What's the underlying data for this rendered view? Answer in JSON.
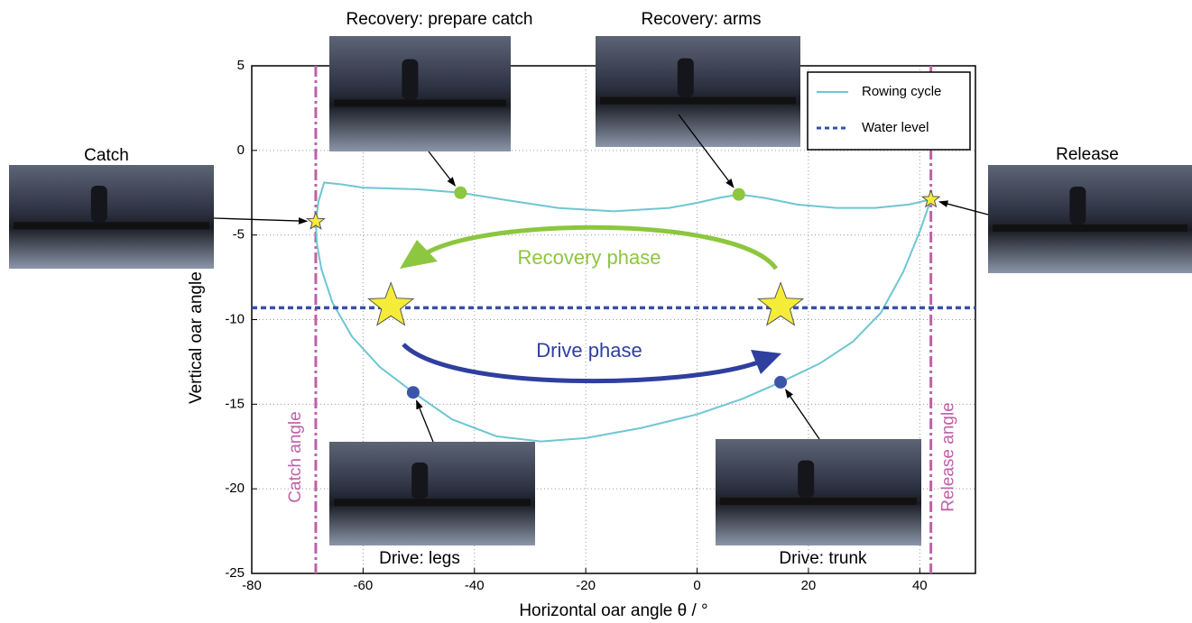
{
  "chart_data": {
    "type": "line",
    "x_label": "Horizontal oar angle θ / °",
    "y_label": "Vertical oar angle δ / °",
    "xlim": [
      -80,
      50
    ],
    "ylim": [
      -25,
      5
    ],
    "xticks": [
      -80,
      -60,
      -40,
      -20,
      0,
      20,
      40
    ],
    "yticks": [
      -25,
      -20,
      -15,
      -10,
      -5,
      0,
      5
    ],
    "grid": true,
    "legend": "upper right",
    "series": [
      {
        "name": "Rowing cycle",
        "color": "#6ec6d2",
        "x": [
          -68.5,
          -68,
          -67,
          -64,
          -60,
          -50,
          -42.5,
          -35,
          -25,
          -15,
          -5,
          0,
          4,
          7.5,
          12,
          18,
          25,
          32,
          38,
          42,
          40,
          37,
          33,
          28,
          22,
          15,
          8,
          0,
          -10,
          -20,
          -28,
          -36,
          -44,
          -51,
          -57,
          -62,
          -65.5,
          -67.5,
          -68.3,
          -68.5
        ],
        "values": [
          -4.2,
          -3,
          -1.9,
          -2,
          -2.2,
          -2.3,
          -2.5,
          -2.9,
          -3.4,
          -3.6,
          -3.4,
          -3.1,
          -2.8,
          -2.6,
          -2.8,
          -3.2,
          -3.4,
          -3.4,
          -3.2,
          -2.9,
          -4.8,
          -7.2,
          -9.6,
          -11.3,
          -12.6,
          -13.7,
          -14.7,
          -15.6,
          -16.4,
          -17,
          -17.2,
          -16.9,
          -15.9,
          -14.3,
          -12.8,
          -11,
          -9,
          -7,
          -5.5,
          -4.2
        ]
      },
      {
        "name": "Water level",
        "color": "#3a4fa8",
        "dashed": true,
        "x": [
          -80,
          50
        ],
        "values": [
          -9.3,
          -9.3
        ]
      }
    ],
    "vlines": [
      {
        "label": "Catch angle",
        "x": -68.5
      },
      {
        "label": "Release angle",
        "x": 42
      }
    ],
    "vline_color": "#c060a8",
    "photos": [
      {
        "caption": "Catch",
        "x": -68.5,
        "y": -4.2,
        "marker": "star",
        "color": "#f5ec3a"
      },
      {
        "caption": "Recovery: prepare catch",
        "x": -42.5,
        "y": -2.5,
        "marker": "circle",
        "color": "#8dc63f"
      },
      {
        "caption": "Recovery: arms",
        "x": 7.5,
        "y": -2.6,
        "marker": "circle",
        "color": "#8dc63f"
      },
      {
        "caption": "Release",
        "x": 42,
        "y": -2.9,
        "marker": "star",
        "color": "#f5ec3a"
      },
      {
        "caption": "Drive: legs",
        "x": -51,
        "y": -14.3,
        "marker": "circle",
        "color": "#3b55a8"
      },
      {
        "caption": "Drive: trunk",
        "x": 15,
        "y": -13.7,
        "marker": "circle",
        "color": "#3b55a8"
      }
    ],
    "stars": [
      {
        "x": -55,
        "y": -9.2,
        "color": "#f5ec3a"
      },
      {
        "x": 15,
        "y": -9.2,
        "color": "#f5ec3a"
      }
    ],
    "phases": [
      {
        "label": "Recovery phase",
        "color": "#8dc63f"
      },
      {
        "label": "Drive phase",
        "color": "#2e3f9e"
      }
    ]
  }
}
